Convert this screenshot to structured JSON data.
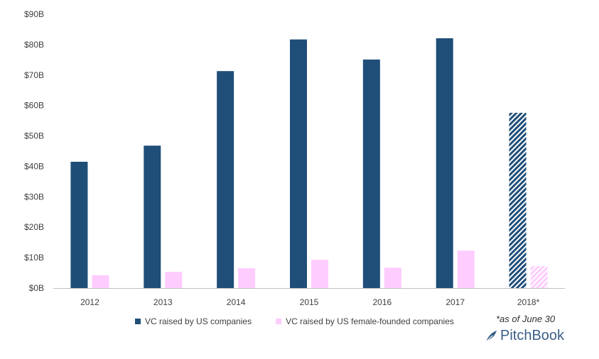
{
  "chart_data": {
    "type": "bar",
    "categories": [
      "2012",
      "2013",
      "2014",
      "2015",
      "2016",
      "2017",
      "2018*"
    ],
    "series": [
      {
        "name": "VC raised by US companies",
        "color": "#1f4e79",
        "values": [
          41.5,
          46.8,
          71.3,
          81.7,
          75.1,
          82.1,
          57.6
        ]
      },
      {
        "name": "VC raised by US female-founded companies",
        "color": "#ffccff",
        "values": [
          4.2,
          5.3,
          6.5,
          9.3,
          6.7,
          12.3,
          7.2
        ]
      }
    ],
    "hatched_categories": [
      "2018*"
    ],
    "y_tick_labels": [
      "$0B",
      "$10B",
      "$20B",
      "$30B",
      "$40B",
      "$50B",
      "$60B",
      "$70B",
      "$80B",
      "$90B"
    ],
    "ylim": [
      0,
      90
    ],
    "grid": false,
    "legend_position": "bottom-left",
    "xlabel": "",
    "ylabel": ""
  },
  "footnote": "*as of June 30",
  "logo_text": "PitchBook",
  "logo_icon": "feather-icon"
}
